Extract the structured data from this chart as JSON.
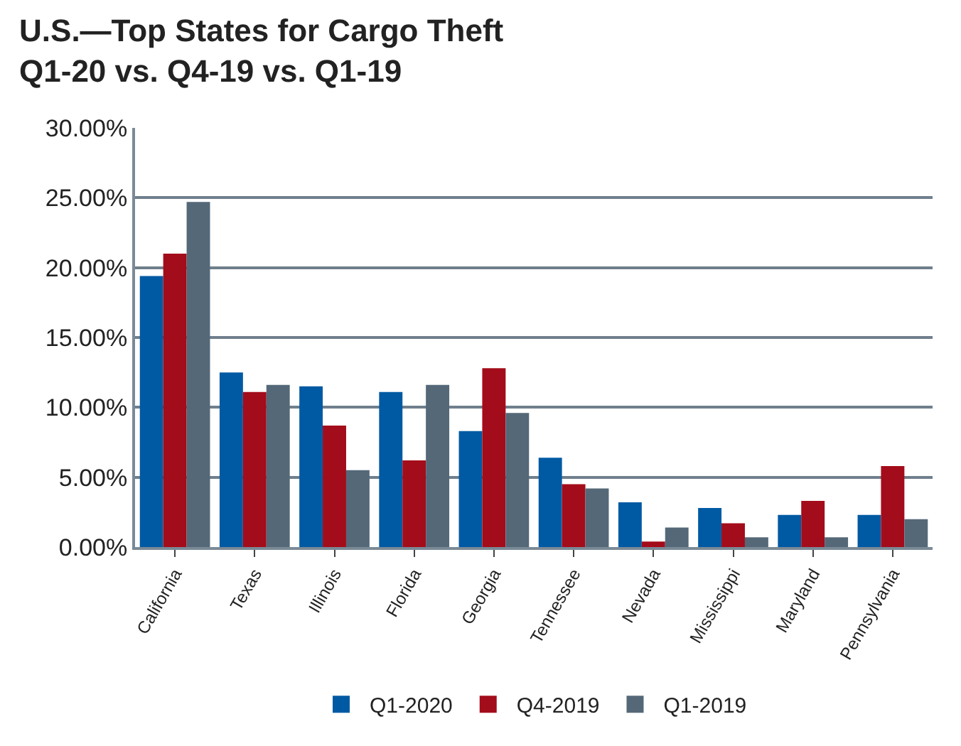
{
  "chart_data": {
    "type": "bar",
    "title": "U.S.—Top States for Cargo Theft\nQ1-20 vs. Q4-19 vs. Q1-19",
    "categories": [
      "California",
      "Texas",
      "Illinois",
      "Florida",
      "Georgia",
      "Tennessee",
      "Nevada",
      "Mississippi",
      "Maryland",
      "Pennsylvania"
    ],
    "series": [
      {
        "name": "Q1-2020",
        "color": "#005aa3",
        "values": [
          19.4,
          12.5,
          11.5,
          11.1,
          8.3,
          6.4,
          3.2,
          2.8,
          2.3,
          2.3
        ]
      },
      {
        "name": "Q4-2019",
        "color": "#a30c1a",
        "values": [
          21.0,
          11.1,
          8.7,
          6.2,
          12.8,
          4.5,
          0.4,
          1.7,
          3.3,
          5.8
        ]
      },
      {
        "name": "Q1-2019",
        "color": "#546878",
        "values": [
          24.7,
          11.6,
          5.5,
          11.6,
          9.6,
          4.2,
          1.4,
          0.7,
          0.7,
          2.0
        ]
      }
    ],
    "ylim": [
      0,
      30
    ],
    "yticks": [
      {
        "value": 0,
        "label": "0.00%"
      },
      {
        "value": 5,
        "label": "5.00%"
      },
      {
        "value": 10,
        "label": "10.00%"
      },
      {
        "value": 15,
        "label": "15.00%"
      },
      {
        "value": 20,
        "label": "20.00%"
      },
      {
        "value": 25,
        "label": "25.00%"
      },
      {
        "value": 30,
        "label": "30.00%"
      }
    ],
    "grid": "y",
    "legend": "bottom"
  }
}
